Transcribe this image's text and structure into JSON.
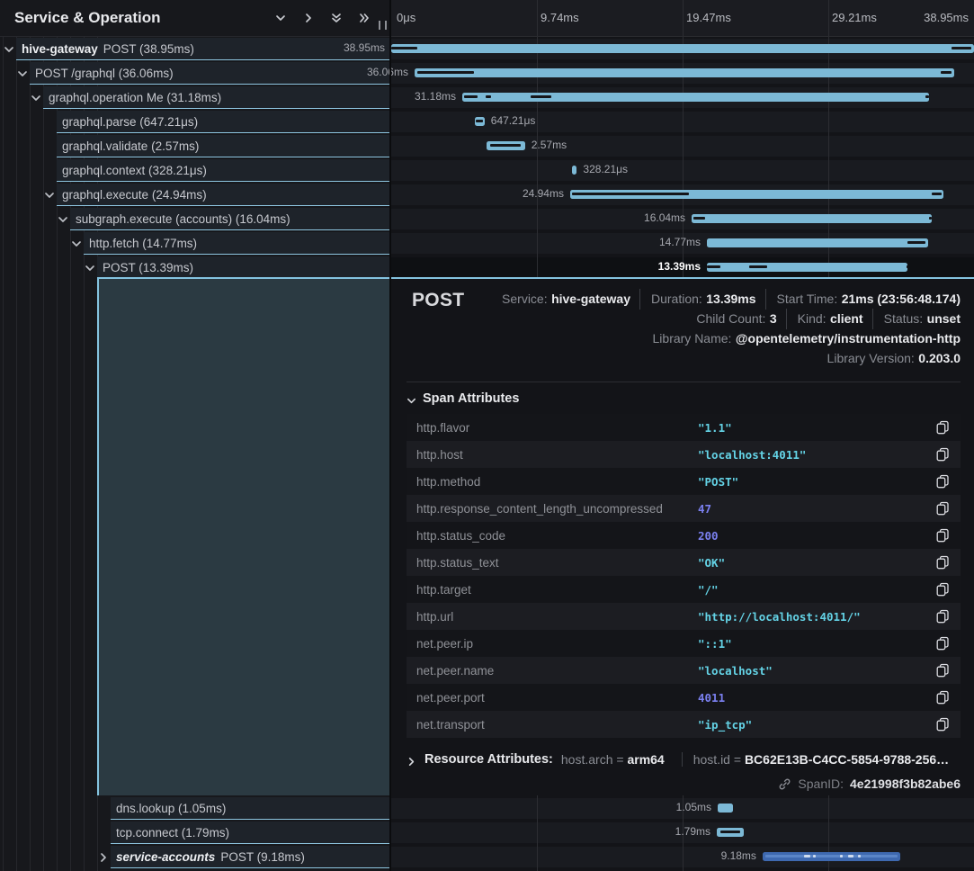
{
  "header": {
    "title": "Service & Operation",
    "icons": [
      "chevron-down-icon",
      "chevron-right-icon",
      "double-chevron-down-icon",
      "double-chevron-right-icon"
    ]
  },
  "ruler": {
    "total_ms": 38.95,
    "ticks": [
      "0μs",
      "9.74ms",
      "19.47ms",
      "29.21ms",
      "38.95ms"
    ]
  },
  "spans": [
    {
      "slot": 0,
      "depth": 0,
      "caret": "down",
      "service": "hive-gateway",
      "label": "POST (38.95ms)",
      "selected": false,
      "bar": {
        "start_ms": 0,
        "duration_ms": 38.95,
        "label": "38.95ms",
        "label_side": "left",
        "color": "light",
        "marks_dark": [
          [
            0,
            0.045
          ],
          [
            0.962,
            0.995
          ]
        ],
        "marks_light": [],
        "marks_bright": []
      }
    },
    {
      "slot": 1,
      "depth": 1,
      "caret": "down",
      "service": null,
      "label": "POST /graphql (36.06ms)",
      "selected": false,
      "bar": {
        "start_ms": 1.56,
        "duration_ms": 36.06,
        "label": "36.06ms",
        "label_side": "left",
        "color": "light",
        "marks_dark": [
          [
            0.005,
            0.11
          ],
          [
            0.975,
            0.995
          ]
        ],
        "marks_light": [],
        "marks_bright": []
      }
    },
    {
      "slot": 2,
      "depth": 2,
      "caret": "down",
      "service": null,
      "label": "graphql.operation Me (31.18ms)",
      "selected": false,
      "bar": {
        "start_ms": 4.75,
        "duration_ms": 31.18,
        "label": "31.18ms",
        "label_side": "left",
        "color": "light",
        "marks_dark": [
          [
            0.004,
            0.033
          ],
          [
            0.05,
            0.061
          ],
          [
            0.147,
            0.19
          ],
          [
            0.993,
            1
          ]
        ],
        "marks_light": [],
        "marks_bright": []
      }
    },
    {
      "slot": 3,
      "depth": 3,
      "caret": null,
      "service": null,
      "label": "graphql.parse (647.21μs)",
      "selected": false,
      "bar": {
        "start_ms": 5.59,
        "duration_ms": 0.64721,
        "label": "647.21μs",
        "label_side": "right",
        "color": "light",
        "marks_dark": [
          [
            0.12,
            0.88
          ]
        ],
        "marks_light": [],
        "marks_bright": []
      }
    },
    {
      "slot": 4,
      "depth": 3,
      "caret": null,
      "service": null,
      "label": "graphql.validate (2.57ms)",
      "selected": false,
      "bar": {
        "start_ms": 6.37,
        "duration_ms": 2.57,
        "label": "2.57ms",
        "label_side": "right",
        "color": "light",
        "marks_dark": [
          [
            0.1,
            0.9
          ]
        ],
        "marks_light": [],
        "marks_bright": []
      }
    },
    {
      "slot": 5,
      "depth": 3,
      "caret": null,
      "service": null,
      "label": "graphql.context (328.21μs)",
      "selected": false,
      "bar": {
        "start_ms": 12.08,
        "duration_ms": 0.32821,
        "label": "328.21μs",
        "label_side": "right",
        "color": "light",
        "marks_dark": [],
        "marks_light": [],
        "marks_bright": []
      }
    },
    {
      "slot": 6,
      "depth": 3,
      "caret": "down",
      "service": null,
      "label": "graphql.execute (24.94ms)",
      "selected": false,
      "bar": {
        "start_ms": 11.96,
        "duration_ms": 24.94,
        "label": "24.94ms",
        "label_side": "left",
        "color": "light",
        "marks_dark": [
          [
            0.004,
            0.318
          ],
          [
            0.968,
            0.996
          ]
        ],
        "marks_light": [],
        "marks_bright": []
      }
    },
    {
      "slot": 7,
      "depth": 4,
      "caret": "down",
      "service": null,
      "label": "subgraph.execute (accounts) (16.04ms)",
      "selected": false,
      "bar": {
        "start_ms": 20.08,
        "duration_ms": 16.04,
        "label": "16.04ms",
        "label_side": "left",
        "color": "light",
        "marks_dark": [
          [
            0.006,
            0.055
          ],
          [
            0.99,
            1
          ]
        ],
        "marks_light": [],
        "marks_bright": []
      }
    },
    {
      "slot": 8,
      "depth": 5,
      "caret": "down",
      "service": null,
      "label": "http.fetch (14.77ms)",
      "selected": false,
      "bar": {
        "start_ms": 21.1,
        "duration_ms": 14.77,
        "label": "14.77ms",
        "label_side": "left",
        "color": "light",
        "marks_dark": [
          [
            0.908,
            0.988
          ]
        ],
        "marks_light": [],
        "marks_bright": []
      }
    },
    {
      "slot": 9,
      "depth": 6,
      "caret": "down",
      "service": null,
      "label": "POST (13.39ms)",
      "selected": true,
      "bar": {
        "start_ms": 21.1,
        "duration_ms": 13.39,
        "label": "13.39ms",
        "label_side": "left",
        "color": "light",
        "marks_dark": [
          [
            0.001,
            0.066
          ],
          [
            0.21,
            0.3
          ],
          [
            0.995,
            1
          ]
        ],
        "marks_light": [],
        "marks_bright": []
      }
    },
    {
      "slot": 10,
      "depth": 7,
      "caret": null,
      "service": null,
      "label": "dns.lookup (1.05ms)",
      "selected": false,
      "bar": {
        "start_ms": 21.82,
        "duration_ms": 1.05,
        "label": "1.05ms",
        "label_side": "left",
        "color": "light",
        "marks_dark": [],
        "marks_light": [],
        "marks_bright": []
      }
    },
    {
      "slot": 11,
      "depth": 7,
      "caret": null,
      "service": null,
      "label": "tcp.connect (1.79ms)",
      "selected": false,
      "bar": {
        "start_ms": 21.76,
        "duration_ms": 1.79,
        "label": "1.79ms",
        "label_side": "left",
        "color": "light",
        "marks_dark": [
          [
            0.12,
            0.88
          ]
        ],
        "marks_light": [],
        "marks_bright": []
      }
    },
    {
      "slot": 12,
      "depth": 7,
      "caret": "right",
      "service": "service-accounts",
      "service_italic": true,
      "label": "POST (9.18ms)",
      "selected": false,
      "bar": {
        "start_ms": 24.82,
        "duration_ms": 9.18,
        "label": "9.18ms",
        "label_side": "left",
        "color": "blue",
        "marks_dark": [],
        "marks_light": [
          [
            0.02,
            0.98
          ]
        ],
        "marks_bright": [
          [
            0.3,
            0.345
          ],
          [
            0.365,
            0.385
          ],
          [
            0.565,
            0.585
          ],
          [
            0.625,
            0.665
          ],
          [
            0.695,
            0.715
          ]
        ]
      }
    }
  ],
  "detail": {
    "title": "POST",
    "meta": [
      [
        {
          "label": "Service:",
          "value": "hive-gateway"
        },
        {
          "label": "Duration:",
          "value": "13.39ms"
        },
        {
          "label": "Start Time:",
          "value": "21ms (23:56:48.174)"
        }
      ],
      [
        {
          "label": "Child Count:",
          "value": "3"
        },
        {
          "label": "Kind:",
          "value": "client"
        },
        {
          "label": "Status:",
          "value": "unset"
        }
      ],
      [
        {
          "label": "Library Name:",
          "value": "@opentelemetry/instrumentation-http"
        }
      ],
      [
        {
          "label": "Library Version:",
          "value": "0.203.0"
        }
      ]
    ],
    "span_attributes_title": "Span Attributes",
    "attributes": [
      {
        "key": "http.flavor",
        "value": "\"1.1\"",
        "type": "str"
      },
      {
        "key": "http.host",
        "value": "\"localhost:4011\"",
        "type": "str"
      },
      {
        "key": "http.method",
        "value": "\"POST\"",
        "type": "str"
      },
      {
        "key": "http.response_content_length_uncompressed",
        "value": "47",
        "type": "num"
      },
      {
        "key": "http.status_code",
        "value": "200",
        "type": "num"
      },
      {
        "key": "http.status_text",
        "value": "\"OK\"",
        "type": "str"
      },
      {
        "key": "http.target",
        "value": "\"/\"",
        "type": "str"
      },
      {
        "key": "http.url",
        "value": "\"http://localhost:4011/\"",
        "type": "str"
      },
      {
        "key": "net.peer.ip",
        "value": "\"::1\"",
        "type": "str"
      },
      {
        "key": "net.peer.name",
        "value": "\"localhost\"",
        "type": "str"
      },
      {
        "key": "net.peer.port",
        "value": "4011",
        "type": "num"
      },
      {
        "key": "net.transport",
        "value": "\"ip_tcp\"",
        "type": "str"
      }
    ],
    "resource_title": "Resource Attributes:",
    "resource_pairs": [
      {
        "key": "host.arch",
        "eq": "=",
        "value": "arm64"
      },
      {
        "key": "host.id",
        "eq": "=",
        "value": "BC62E13B-C4CC-5854-9788-256…"
      }
    ],
    "span_id": {
      "label": "SpanID:",
      "value": "4e21998f3b82abe6"
    }
  }
}
